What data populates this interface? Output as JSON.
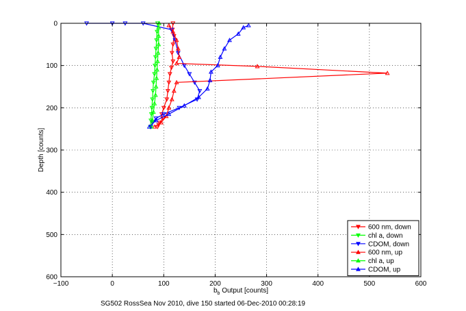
{
  "chart_data": {
    "type": "scatter",
    "title": "",
    "xlabel_main": "b",
    "xlabel_sub": "b",
    "xlabel_rest": " Output [counts]",
    "ylabel": "Depth [counts]",
    "xlim": [
      -100,
      600
    ],
    "ylim": [
      0,
      600
    ],
    "y_reversed": true,
    "x_ticks": [
      -100,
      0,
      100,
      200,
      300,
      400,
      500,
      600
    ],
    "x_tick_labels": [
      "−100",
      "0",
      "100",
      "200",
      "300",
      "400",
      "500",
      "600"
    ],
    "y_ticks": [
      0,
      100,
      200,
      300,
      400,
      500,
      600
    ],
    "y_tick_labels": [
      "0",
      "100",
      "200",
      "300",
      "400",
      "500",
      "600"
    ],
    "grid": true,
    "legend_position": "bottom-right",
    "footer": "SG502 RossSea Nov 2010, dive 150 started 06-Dec-2010 00:28:19",
    "series": [
      {
        "name": "600 nm, down",
        "color": "#ff0000",
        "marker": "triangle-down",
        "points": [
          [
            118,
            0
          ],
          [
            117,
            15
          ],
          [
            120,
            30
          ],
          [
            118,
            50
          ],
          [
            116,
            70
          ],
          [
            118,
            90
          ],
          [
            115,
            105
          ],
          [
            112,
            120
          ],
          [
            110,
            140
          ],
          [
            108,
            160
          ],
          [
            106,
            180
          ],
          [
            100,
            200
          ],
          [
            96,
            215
          ],
          [
            98,
            225
          ],
          [
            92,
            235
          ],
          [
            90,
            240
          ],
          [
            88,
            245
          ]
        ]
      },
      {
        "name": "chl a, down",
        "color": "#00ff00",
        "marker": "triangle-down",
        "points": [
          [
            88,
            0
          ],
          [
            87,
            20
          ],
          [
            86,
            40
          ],
          [
            85,
            60
          ],
          [
            84,
            80
          ],
          [
            83,
            100
          ],
          [
            82,
            120
          ],
          [
            80,
            140
          ],
          [
            79,
            160
          ],
          [
            78,
            180
          ],
          [
            77,
            200
          ],
          [
            76,
            215
          ],
          [
            75,
            230
          ],
          [
            74,
            245
          ]
        ]
      },
      {
        "name": "CDOM, down",
        "color": "#0000ff",
        "marker": "triangle-down",
        "points": [
          [
            -50,
            0
          ],
          [
            0,
            0
          ],
          [
            25,
            0
          ],
          [
            60,
            0
          ],
          [
            115,
            15
          ],
          [
            122,
            40
          ],
          [
            128,
            70
          ],
          [
            140,
            100
          ],
          [
            150,
            120
          ],
          [
            160,
            140
          ],
          [
            170,
            160
          ],
          [
            165,
            180
          ],
          [
            130,
            200
          ],
          [
            100,
            215
          ],
          [
            85,
            225
          ],
          [
            78,
            235
          ],
          [
            75,
            245
          ]
        ]
      },
      {
        "name": "600 nm, up",
        "color": "#ff0000",
        "marker": "triangle-up",
        "points": [
          [
            82,
            245
          ],
          [
            95,
            235
          ],
          [
            105,
            220
          ],
          [
            110,
            200
          ],
          [
            116,
            180
          ],
          [
            120,
            160
          ],
          [
            125,
            140
          ],
          [
            535,
            118
          ],
          [
            282,
            102
          ],
          [
            125,
            95
          ],
          [
            130,
            80
          ],
          [
            128,
            60
          ],
          [
            125,
            40
          ],
          [
            118,
            20
          ],
          [
            110,
            5
          ]
        ]
      },
      {
        "name": "chl a, up",
        "color": "#00ff00",
        "marker": "triangle-up",
        "points": [
          [
            76,
            245
          ],
          [
            78,
            230
          ],
          [
            80,
            210
          ],
          [
            82,
            190
          ],
          [
            84,
            170
          ],
          [
            85,
            150
          ],
          [
            86,
            130
          ],
          [
            87,
            110
          ],
          [
            88,
            90
          ],
          [
            89,
            70
          ],
          [
            90,
            50
          ],
          [
            90,
            30
          ],
          [
            90,
            10
          ],
          [
            91,
            0
          ]
        ]
      },
      {
        "name": "CDOM, up",
        "color": "#0000ff",
        "marker": "triangle-up",
        "points": [
          [
            72,
            245
          ],
          [
            85,
            230
          ],
          [
            110,
            215
          ],
          [
            140,
            195
          ],
          [
            168,
            175
          ],
          [
            185,
            155
          ],
          [
            190,
            135
          ],
          [
            192,
            115
          ],
          [
            205,
            100
          ],
          [
            210,
            80
          ],
          [
            218,
            60
          ],
          [
            228,
            40
          ],
          [
            245,
            25
          ],
          [
            255,
            10
          ],
          [
            265,
            5
          ]
        ]
      }
    ]
  }
}
